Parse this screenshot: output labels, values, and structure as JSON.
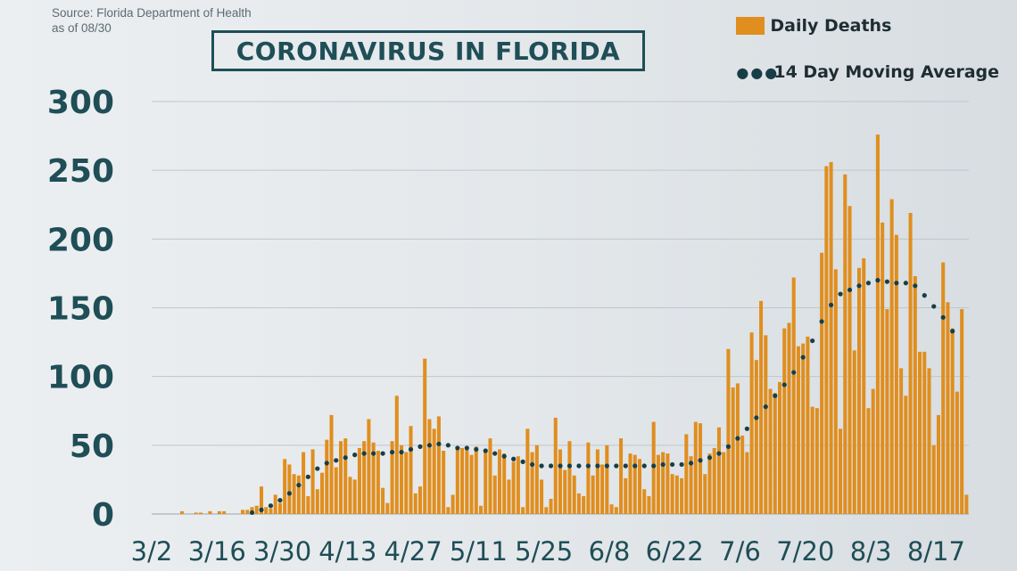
{
  "source_lines": [
    "Source: Florida Department of Health",
    "as of 08/30"
  ],
  "title": "CORONAVIRUS IN FLORIDA",
  "legend": {
    "bars": "Daily Deaths",
    "avg": "14 Day Moving Average"
  },
  "colors": {
    "bar": "#e08e1e",
    "avg_dots": "#173e47",
    "axis_text": "#1f4e57",
    "grid": "#bfc6cb"
  },
  "chart_data": {
    "type": "bar",
    "title": "CORONAVIRUS IN FLORIDA",
    "xlabel": "",
    "ylabel": "",
    "ylim": [
      0,
      300
    ],
    "yticks": [
      "0",
      "50",
      "100",
      "150",
      "200",
      "250",
      "300"
    ],
    "x_tick_labels": [
      "3/2",
      "3/16",
      "3/30",
      "4/13",
      "4/27",
      "5/11",
      "5/25",
      "6/8",
      "6/22",
      "7/6",
      "7/20",
      "8/3",
      "8/17"
    ],
    "start_date": "3/2",
    "grid": "horizontal",
    "legend_position": "top-right",
    "series": [
      {
        "name": "Daily Deaths",
        "type": "bar",
        "values": [
          0,
          0,
          0,
          0,
          0,
          0,
          2,
          0,
          0,
          1,
          1,
          0,
          2,
          0,
          2,
          2,
          0,
          0,
          0,
          3,
          3,
          5,
          6,
          20,
          5,
          4,
          14,
          8,
          40,
          36,
          29,
          28,
          45,
          13,
          47,
          18,
          30,
          54,
          72,
          34,
          53,
          55,
          27,
          25,
          48,
          53,
          69,
          52,
          46,
          19,
          8,
          53,
          86,
          50,
          45,
          64,
          15,
          20,
          113,
          69,
          62,
          71,
          46,
          5,
          14,
          48,
          48,
          48,
          43,
          49,
          6,
          47,
          55,
          28,
          47,
          44,
          25,
          38,
          42,
          5,
          62,
          45,
          50,
          25,
          5,
          11,
          70,
          47,
          32,
          53,
          28,
          15,
          13,
          52,
          28,
          47,
          36,
          50,
          7,
          5,
          55,
          26,
          44,
          43,
          40,
          18,
          13,
          67,
          43,
          45,
          44,
          29,
          28,
          26,
          58,
          42,
          67,
          66,
          29,
          44,
          48,
          63,
          45,
          120,
          92,
          95,
          57,
          45,
          132,
          112,
          155,
          130,
          91,
          88,
          96,
          135,
          139,
          172,
          122,
          124,
          129,
          78,
          77,
          190,
          253,
          256,
          178,
          62,
          247,
          224,
          119,
          179,
          186,
          77,
          91,
          276,
          212,
          149,
          229,
          203,
          106,
          86,
          219,
          173,
          118,
          118,
          106,
          50,
          72,
          183,
          154,
          135,
          89,
          149,
          14
        ]
      },
      {
        "name": "14 Day Moving Average",
        "type": "line-dotted",
        "values": [
          null,
          null,
          null,
          null,
          null,
          null,
          null,
          null,
          null,
          null,
          null,
          null,
          null,
          null,
          null,
          null,
          null,
          null,
          null,
          null,
          null,
          1,
          2,
          3,
          5,
          6,
          8,
          10,
          12,
          15,
          18,
          21,
          24,
          27,
          30,
          33,
          35,
          37,
          38,
          39,
          40,
          41,
          42,
          43,
          44,
          44,
          44,
          44,
          44,
          44,
          44,
          45,
          45,
          45,
          46,
          47,
          48,
          49,
          50,
          50,
          51,
          51,
          51,
          50,
          49,
          48,
          48,
          48,
          47,
          47,
          46,
          46,
          45,
          44,
          43,
          42,
          41,
          40,
          39,
          38,
          37,
          36,
          35,
          35,
          35,
          35,
          35,
          35,
          35,
          35,
          35,
          35,
          35,
          35,
          35,
          35,
          35,
          35,
          35,
          35,
          35,
          35,
          35,
          35,
          35,
          35,
          35,
          35,
          35,
          36,
          36,
          36,
          36,
          36,
          36,
          37,
          38,
          39,
          40,
          41,
          42,
          44,
          46,
          49,
          52,
          55,
          58,
          62,
          66,
          70,
          74,
          78,
          82,
          86,
          90,
          94,
          98,
          103,
          108,
          114,
          120,
          126,
          133,
          140,
          146,
          152,
          156,
          160,
          162,
          163,
          165,
          166,
          167,
          168,
          170,
          170,
          170,
          169,
          168,
          168,
          168,
          168,
          168,
          166,
          163,
          159,
          155,
          151,
          147,
          143,
          138,
          133,
          128
        ]
      }
    ]
  }
}
